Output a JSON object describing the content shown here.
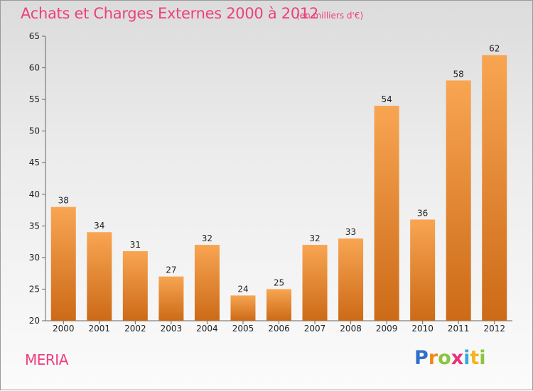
{
  "title": "Achats et Charges Externes 2000 à 2012",
  "subtitle": "(en milliers d'€)",
  "commune": "MERIA",
  "logo": {
    "letters": [
      "P",
      "r",
      "o",
      "x",
      "i",
      "t",
      "i"
    ],
    "colors": [
      "#2f6fc9",
      "#ef8a1f",
      "#8bc53f",
      "#e8327c",
      "#39a9db",
      "#f3b51c",
      "#8bc53f"
    ]
  },
  "chart_data": {
    "type": "bar",
    "categories": [
      "2000",
      "2001",
      "2002",
      "2003",
      "2004",
      "2005",
      "2006",
      "2007",
      "2008",
      "2009",
      "2010",
      "2011",
      "2012"
    ],
    "values": [
      38,
      34,
      31,
      27,
      32,
      24,
      25,
      32,
      33,
      54,
      36,
      58,
      62
    ],
    "ylim": [
      20,
      65
    ],
    "yticks": [
      20,
      25,
      30,
      35,
      40,
      45,
      50,
      55,
      60,
      65
    ],
    "grid": false,
    "bar_color_top": "#f8a552",
    "bar_color_bottom": "#cc6a17"
  }
}
